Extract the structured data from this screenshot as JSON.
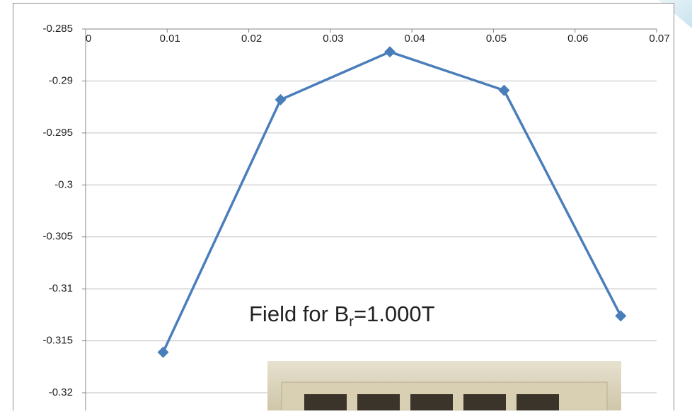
{
  "chart_data": {
    "type": "line",
    "x": [
      0.0095,
      0.0239,
      0.0373,
      0.0513,
      0.0656
    ],
    "series": [
      {
        "color": "#4a7ebb",
        "values": [
          -0.3161,
          -0.2918,
          -0.2872,
          -0.2909,
          -0.3126
        ]
      }
    ],
    "xlim": [
      0,
      0.07
    ],
    "xticks": [
      0,
      0.01,
      0.02,
      0.03,
      0.04,
      0.05,
      0.06,
      0.07
    ],
    "ylim": [
      -0.32,
      -0.285
    ],
    "yticks": [
      -0.285,
      -0.29,
      -0.295,
      -0.3,
      -0.305,
      -0.31,
      -0.315,
      -0.32
    ],
    "grid": true,
    "annotation": {
      "text": "Field for B",
      "subscript": "r",
      "suffix": "=1.000T"
    }
  }
}
